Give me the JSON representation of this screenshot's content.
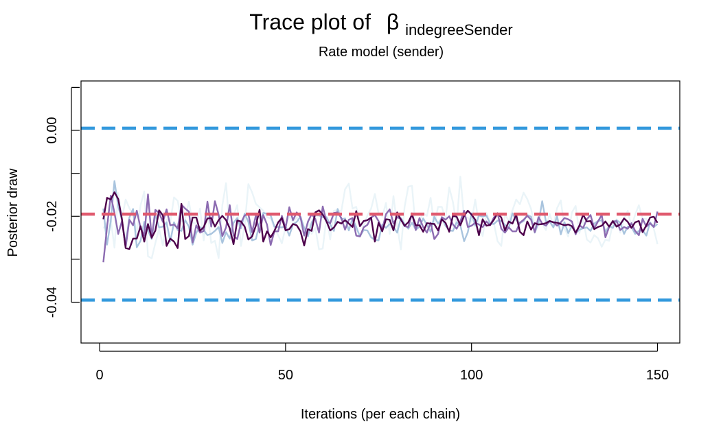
{
  "chart_data": {
    "type": "line",
    "title_prefix": "Trace plot of",
    "title_symbol": "β",
    "title_subscript": "indegreeSender",
    "subtitle": "Rate model (sender)",
    "xlabel": "Iterations (per each chain)",
    "ylabel": "Posterior draw",
    "xlim": [
      -5,
      156
    ],
    "ylim": [
      -0.0495,
      0.0115
    ],
    "x_ticks": [
      0,
      50,
      100,
      150
    ],
    "x_tick_labels": [
      "0",
      "50",
      "100",
      "150"
    ],
    "y_ticks": [
      0.0,
      -0.02,
      -0.04
    ],
    "y_tick_labels": [
      "0.00",
      "-0.02",
      "-0.04"
    ],
    "grid": false,
    "reference_lines": [
      {
        "kind": "upper",
        "value": 0.0005,
        "color": "#3399dd"
      },
      {
        "kind": "mean",
        "value": -0.0195,
        "color": "#e05a6e"
      },
      {
        "kind": "lower",
        "value": -0.0395,
        "color": "#3399dd"
      }
    ],
    "series": [
      {
        "color": "#eaf4f8",
        "values": [
          -0.0228,
          -0.0215,
          -0.0207,
          -0.0273,
          -0.0146,
          -0.0205,
          -0.0161,
          -0.0181,
          -0.0196,
          -0.0237,
          -0.0174,
          -0.0142,
          -0.0293,
          -0.0298,
          -0.0262,
          -0.0229,
          -0.0268,
          -0.0208,
          -0.0214,
          -0.0156,
          -0.0164,
          -0.0212,
          -0.0205,
          -0.0166,
          -0.0215,
          -0.0217,
          -0.0182,
          -0.0256,
          -0.0187,
          -0.0262,
          -0.0257,
          -0.0297,
          -0.0174,
          -0.0123,
          -0.0236,
          -0.0198,
          -0.0174,
          -0.0269,
          -0.0222,
          -0.0125,
          -0.0144,
          -0.0171,
          -0.0179,
          -0.0187,
          -0.0202,
          -0.0205,
          -0.0226,
          -0.0244,
          -0.0263,
          -0.0225,
          -0.0198,
          -0.0214,
          -0.0202,
          -0.0218,
          -0.0245,
          -0.021,
          -0.0241,
          -0.0227,
          -0.0277,
          -0.0275,
          -0.0202,
          -0.0254,
          -0.0187,
          -0.0186,
          -0.0188,
          -0.0137,
          -0.0124,
          -0.0182,
          -0.0178,
          -0.0218,
          -0.0224,
          -0.0198,
          -0.0182,
          -0.0148,
          -0.0193,
          -0.0201,
          -0.0169,
          -0.0241,
          -0.0153,
          -0.0221,
          -0.0277,
          -0.0178,
          -0.0131,
          -0.0129,
          -0.0233,
          -0.021,
          -0.0193,
          -0.0199,
          -0.0157,
          -0.0221,
          -0.0178,
          -0.0178,
          -0.0206,
          -0.0133,
          -0.0167,
          -0.0221,
          -0.0108,
          -0.0205,
          -0.0203,
          -0.0213,
          -0.0161,
          -0.0221,
          -0.0246,
          -0.0192,
          -0.0214,
          -0.0216,
          -0.0258,
          -0.0269,
          -0.0195,
          -0.0211,
          -0.0186,
          -0.0161,
          -0.0172,
          -0.0145,
          -0.016,
          -0.0183,
          -0.0224,
          -0.0208,
          -0.0218,
          -0.0232,
          -0.0194,
          -0.0222,
          -0.0181,
          -0.0163,
          -0.0228,
          -0.0247,
          -0.0191,
          -0.0176,
          -0.0239,
          -0.0206,
          -0.0254,
          -0.0261,
          -0.0244,
          -0.0251,
          -0.0271,
          -0.0254,
          -0.0257,
          -0.0215,
          -0.0207,
          -0.0238,
          -0.0207,
          -0.0187,
          -0.0225,
          -0.0196,
          -0.0174,
          -0.0207,
          -0.0206,
          -0.0218,
          -0.0229,
          -0.0265
        ]
      },
      {
        "color": "#a9c4de",
        "values": [
          -0.0182,
          -0.0266,
          -0.0211,
          -0.0118,
          -0.0177,
          -0.0209,
          -0.0264,
          -0.0203,
          -0.0183,
          -0.0272,
          -0.0257,
          -0.0213,
          -0.0233,
          -0.0253,
          -0.0195,
          -0.0226,
          -0.0224,
          -0.0214,
          -0.0259,
          -0.0214,
          -0.0232,
          -0.0234,
          -0.0209,
          -0.0224,
          -0.0266,
          -0.0238,
          -0.0225,
          -0.0232,
          -0.0244,
          -0.0241,
          -0.0234,
          -0.0225,
          -0.0262,
          -0.0237,
          -0.0252,
          -0.0215,
          -0.0204,
          -0.0228,
          -0.0194,
          -0.0213,
          -0.0256,
          -0.0253,
          -0.0217,
          -0.0192,
          -0.0194,
          -0.0198,
          -0.0224,
          -0.0225,
          -0.0226,
          -0.0223,
          -0.0245,
          -0.0219,
          -0.0213,
          -0.0201,
          -0.0227,
          -0.0247,
          -0.0215,
          -0.0198,
          -0.0198,
          -0.0202,
          -0.0202,
          -0.0219,
          -0.0234,
          -0.0183,
          -0.0207,
          -0.0205,
          -0.0233,
          -0.0205,
          -0.0225,
          -0.0247,
          -0.0232,
          -0.0233,
          -0.0249,
          -0.0255,
          -0.0256,
          -0.0219,
          -0.0227,
          -0.0218,
          -0.0224,
          -0.0238,
          -0.0204,
          -0.0218,
          -0.0229,
          -0.0215,
          -0.0231,
          -0.0225,
          -0.0205,
          -0.022,
          -0.0236,
          -0.0201,
          -0.0217,
          -0.0204,
          -0.0222,
          -0.0233,
          -0.0234,
          -0.0214,
          -0.0221,
          -0.0258,
          -0.0237,
          -0.0193,
          -0.0222,
          -0.0198,
          -0.0201,
          -0.0198,
          -0.0217,
          -0.0218,
          -0.021,
          -0.0211,
          -0.022,
          -0.0227,
          -0.0193,
          -0.0209,
          -0.0216,
          -0.0211,
          -0.0197,
          -0.0201,
          -0.0238,
          -0.0216,
          -0.0165,
          -0.0212,
          -0.0212,
          -0.0226,
          -0.02,
          -0.0242,
          -0.0214,
          -0.0239,
          -0.0223,
          -0.0239,
          -0.0231,
          -0.0228,
          -0.0226,
          -0.0234,
          -0.0217,
          -0.0211,
          -0.0209,
          -0.0236,
          -0.0223,
          -0.0227,
          -0.0209,
          -0.0215,
          -0.0241,
          -0.0224,
          -0.0225,
          -0.0241,
          -0.0234,
          -0.0232,
          -0.0245,
          -0.0214,
          -0.0225,
          -0.0218
        ]
      },
      {
        "color": "#8c6bb1",
        "values": [
          -0.0307,
          -0.0225,
          -0.0152,
          -0.0192,
          -0.0241,
          -0.0211,
          -0.0272,
          -0.0208,
          -0.0221,
          -0.0187,
          -0.0227,
          -0.0245,
          -0.0149,
          -0.025,
          -0.0185,
          -0.0192,
          -0.0213,
          -0.0184,
          -0.0221,
          -0.0219,
          -0.0228,
          -0.0173,
          -0.0182,
          -0.0189,
          -0.0261,
          -0.0221,
          -0.0238,
          -0.0234,
          -0.0166,
          -0.0224,
          -0.0165,
          -0.0196,
          -0.0246,
          -0.0226,
          -0.0174,
          -0.0245,
          -0.0253,
          -0.0215,
          -0.0198,
          -0.0195,
          -0.0237,
          -0.0198,
          -0.0238,
          -0.0197,
          -0.0219,
          -0.0267,
          -0.0235,
          -0.0235,
          -0.0199,
          -0.0227,
          -0.0179,
          -0.0209,
          -0.0191,
          -0.0202,
          -0.0245,
          -0.0213,
          -0.0195,
          -0.0206,
          -0.0238,
          -0.0177,
          -0.0213,
          -0.0216,
          -0.0192,
          -0.0191,
          -0.0204,
          -0.0231,
          -0.0208,
          -0.0204,
          -0.0245,
          -0.0247,
          -0.0226,
          -0.022,
          -0.0203,
          -0.0197,
          -0.0211,
          -0.0231,
          -0.0195,
          -0.0184,
          -0.0217,
          -0.0202,
          -0.0206,
          -0.0223,
          -0.0225,
          -0.0193,
          -0.0232,
          -0.0204,
          -0.0225,
          -0.0238,
          -0.0215,
          -0.0253,
          -0.0241,
          -0.0202,
          -0.0208,
          -0.02,
          -0.0219,
          -0.0229,
          -0.0212,
          -0.0187,
          -0.0225,
          -0.0222,
          -0.0215,
          -0.0219,
          -0.0225,
          -0.0212,
          -0.0221,
          -0.0203,
          -0.0193,
          -0.0229,
          -0.0238,
          -0.0226,
          -0.0235,
          -0.0235,
          -0.0215,
          -0.0208,
          -0.0199,
          -0.0208,
          -0.0237,
          -0.0202,
          -0.0217,
          -0.0222,
          -0.0211,
          -0.0214,
          -0.0222,
          -0.0214,
          -0.0204,
          -0.0207,
          -0.0212,
          -0.0242,
          -0.0221,
          -0.0227,
          -0.0207,
          -0.0197,
          -0.0228,
          -0.0212,
          -0.0197,
          -0.0249,
          -0.0225,
          -0.0212,
          -0.0211,
          -0.0232,
          -0.0225,
          -0.0229,
          -0.0216,
          -0.0234,
          -0.0244,
          -0.0206,
          -0.0224,
          -0.0216,
          -0.0225,
          -0.0189
        ]
      },
      {
        "color": "#4d004b",
        "values": [
          -0.0207,
          -0.0157,
          -0.0161,
          -0.0144,
          -0.016,
          -0.0207,
          -0.0274,
          -0.0276,
          -0.0252,
          -0.0252,
          -0.0223,
          -0.0259,
          -0.0218,
          -0.025,
          -0.0233,
          -0.0186,
          -0.0198,
          -0.0269,
          -0.0252,
          -0.0259,
          -0.0274,
          -0.0171,
          -0.0253,
          -0.0246,
          -0.0203,
          -0.0203,
          -0.0234,
          -0.0225,
          -0.0205,
          -0.0204,
          -0.0224,
          -0.0209,
          -0.0199,
          -0.0209,
          -0.0228,
          -0.0265,
          -0.021,
          -0.0212,
          -0.0224,
          -0.0254,
          -0.0247,
          -0.0222,
          -0.0185,
          -0.0259,
          -0.0235,
          -0.0249,
          -0.0234,
          -0.0214,
          -0.0204,
          -0.0233,
          -0.023,
          -0.0218,
          -0.0221,
          -0.0235,
          -0.0268,
          -0.023,
          -0.0234,
          -0.0191,
          -0.0186,
          -0.0196,
          -0.0212,
          -0.0233,
          -0.0226,
          -0.0213,
          -0.0217,
          -0.0209,
          -0.0217,
          -0.0225,
          -0.0188,
          -0.0223,
          -0.0211,
          -0.0209,
          -0.0203,
          -0.0259,
          -0.0215,
          -0.0235,
          -0.0207,
          -0.0208,
          -0.0233,
          -0.0191,
          -0.0208,
          -0.0222,
          -0.0214,
          -0.0196,
          -0.0221,
          -0.0221,
          -0.0236,
          -0.0216,
          -0.0217,
          -0.0218,
          -0.0233,
          -0.0207,
          -0.0215,
          -0.0236,
          -0.0199,
          -0.0201,
          -0.0221,
          -0.0199,
          -0.0187,
          -0.0196,
          -0.0208,
          -0.0244,
          -0.0207,
          -0.0222,
          -0.022,
          -0.0208,
          -0.0193,
          -0.0203,
          -0.0233,
          -0.0212,
          -0.0217,
          -0.0196,
          -0.0236,
          -0.0244,
          -0.0212,
          -0.0231,
          -0.0216,
          -0.0219,
          -0.0218,
          -0.0216,
          -0.0211,
          -0.0214,
          -0.0215,
          -0.0218,
          -0.0221,
          -0.0219,
          -0.0223,
          -0.0238,
          -0.0222,
          -0.0196,
          -0.0212,
          -0.0211,
          -0.023,
          -0.0225,
          -0.0222,
          -0.0212,
          -0.0224,
          -0.0211,
          -0.0224,
          -0.0219,
          -0.0205,
          -0.0213,
          -0.0227,
          -0.0214,
          -0.0211,
          -0.0237,
          -0.0221,
          -0.0203,
          -0.0201,
          -0.0215
        ]
      }
    ]
  }
}
